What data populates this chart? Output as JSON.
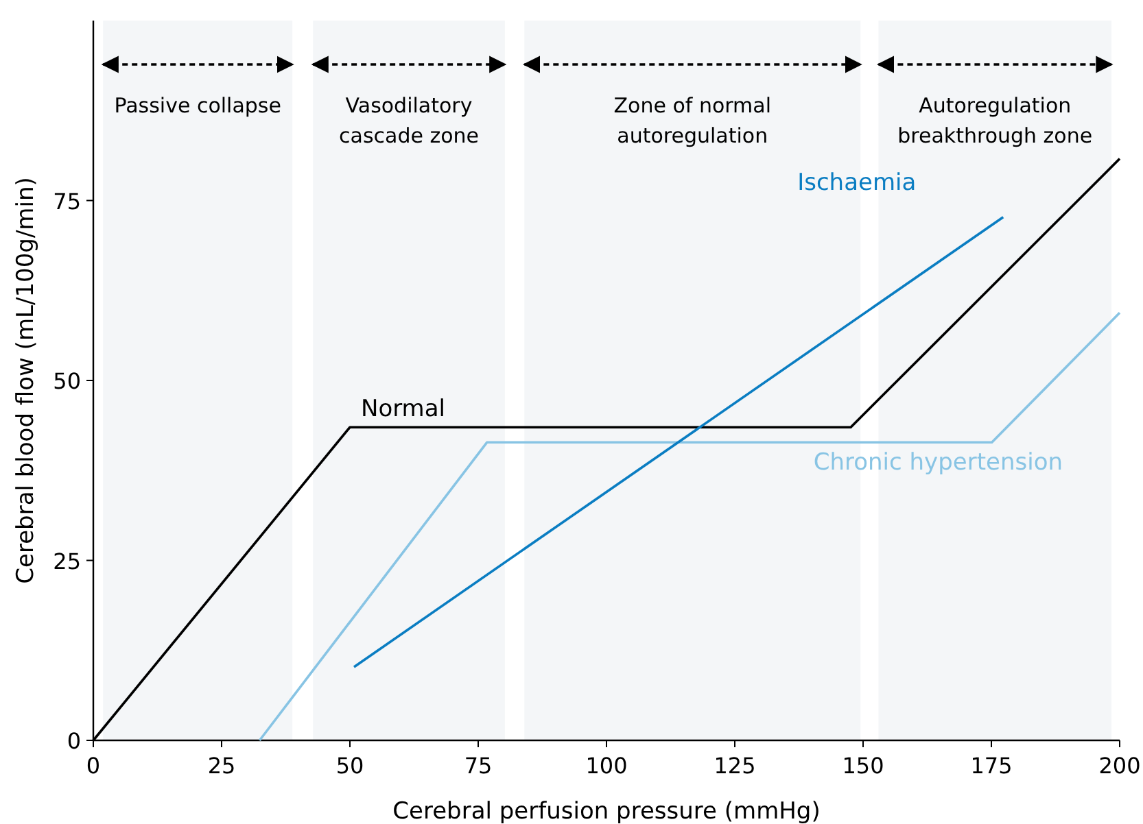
{
  "chart_data": {
    "type": "line",
    "xlabel": "Cerebral perfusion pressure (mmHg)",
    "ylabel": "Cerebral blood flow (mL/100g/min)",
    "xlim": [
      0,
      200
    ],
    "xticks": [
      0,
      25,
      50,
      75,
      100,
      125,
      150,
      175,
      200
    ],
    "ylim": [
      0,
      100
    ],
    "yticks": [
      0,
      25,
      50,
      75
    ],
    "grid": false,
    "legend": false,
    "marker": "none",
    "line_style": "solid",
    "series": [
      {
        "name": "Normal",
        "color": "#000000",
        "x": [
          0,
          50,
          147.6,
          200
        ],
        "values": [
          0,
          43.5,
          43.5,
          80.8
        ]
      },
      {
        "name": "Chronic hypertension",
        "color": "#88c4e4",
        "x": [
          32.4,
          76.7,
          175.1,
          200
        ],
        "values": [
          0,
          41.4,
          41.4,
          59.4
        ]
      },
      {
        "name": "Ischaemia",
        "color": "#0a7dc2",
        "x": [
          50.8,
          177.3
        ],
        "values": [
          10.2,
          72.7
        ]
      }
    ],
    "bands": [
      {
        "axis": "x",
        "from": 1.9,
        "to": 38.8,
        "label": "Passive collapse"
      },
      {
        "axis": "x",
        "from": 42.8,
        "to": 80.2,
        "label": "Vasodilatory\ncascade zone"
      },
      {
        "axis": "x",
        "from": 84,
        "to": 149.5,
        "label": "Zone of normal\nautoregulation"
      },
      {
        "axis": "x",
        "from": 153,
        "to": 198.4,
        "label": "Autoregulation\nbreakthrough zone"
      }
    ]
  }
}
